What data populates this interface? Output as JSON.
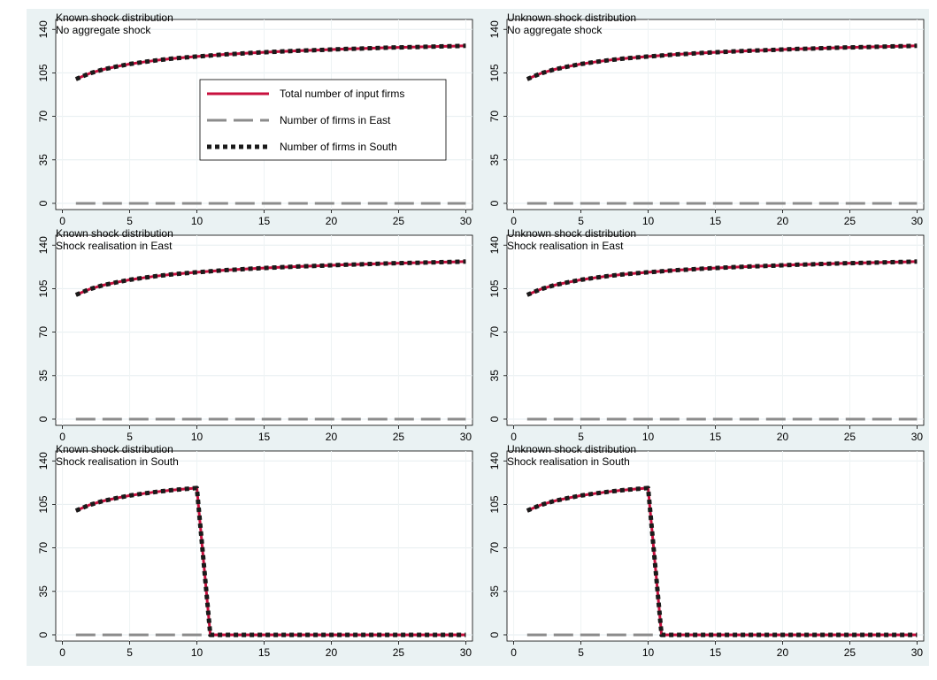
{
  "legend": [
    {
      "name": "Total number of input firms",
      "color": "#c8103e",
      "style": "solid"
    },
    {
      "name": "Number of firms in East",
      "color": "#8c8c8c",
      "style": "dashed"
    },
    {
      "name": "Number of firms in South",
      "color": "#1a1a1a",
      "style": "dotted"
    }
  ],
  "chart_data": [
    {
      "type": "line",
      "title": "Known shock distribution",
      "subtitle": "No aggregate shock",
      "x": [
        1,
        2,
        3,
        4,
        5,
        6,
        7,
        8,
        9,
        10,
        11,
        12,
        13,
        14,
        15,
        16,
        17,
        18,
        19,
        20,
        21,
        22,
        23,
        24,
        25,
        26,
        27,
        28,
        29,
        30
      ],
      "xticks": [
        0,
        5,
        10,
        15,
        20,
        25,
        30
      ],
      "yticks": [
        0,
        35,
        70,
        105,
        140
      ],
      "xlim": [
        -0.5,
        30.5
      ],
      "ylim": [
        -5,
        148
      ],
      "grid": true,
      "legend_position": "center",
      "series": [
        {
          "name": "Total number of input firms",
          "values": [
            100,
            104.5,
            107.7,
            110.1,
            112.1,
            113.7,
            115.1,
            116.3,
            117.3,
            118.2,
            119,
            119.8,
            120.4,
            121,
            121.6,
            122.1,
            122.6,
            123,
            123.4,
            123.8,
            124.2,
            124.5,
            124.9,
            125.2,
            125.5,
            125.7,
            126,
            126.3,
            126.5,
            126.8
          ]
        },
        {
          "name": "Number of firms in East",
          "values": [
            0,
            0,
            0,
            0,
            0,
            0,
            0,
            0,
            0,
            0,
            0,
            0,
            0,
            0,
            0,
            0,
            0,
            0,
            0,
            0,
            0,
            0,
            0,
            0,
            0,
            0,
            0,
            0,
            0,
            0
          ]
        },
        {
          "name": "Number of firms in South",
          "values": [
            100,
            104.5,
            107.7,
            110.1,
            112.1,
            113.7,
            115.1,
            116.3,
            117.3,
            118.2,
            119,
            119.8,
            120.4,
            121,
            121.6,
            122.1,
            122.6,
            123,
            123.4,
            123.8,
            124.2,
            124.5,
            124.9,
            125.2,
            125.5,
            125.7,
            126,
            126.3,
            126.5,
            126.8
          ]
        }
      ]
    },
    {
      "type": "line",
      "title": "Unknown shock distribution",
      "subtitle": "No aggregate shock",
      "x": [
        1,
        2,
        3,
        4,
        5,
        6,
        7,
        8,
        9,
        10,
        11,
        12,
        13,
        14,
        15,
        16,
        17,
        18,
        19,
        20,
        21,
        22,
        23,
        24,
        25,
        26,
        27,
        28,
        29,
        30
      ],
      "xticks": [
        0,
        5,
        10,
        15,
        20,
        25,
        30
      ],
      "yticks": [
        0,
        35,
        70,
        105,
        140
      ],
      "xlim": [
        -0.5,
        30.5
      ],
      "ylim": [
        -5,
        148
      ],
      "grid": true,
      "series": [
        {
          "name": "Total number of input firms",
          "values": [
            100,
            104.5,
            107.7,
            110.1,
            112.1,
            113.7,
            115.1,
            116.3,
            117.3,
            118.2,
            119,
            119.8,
            120.4,
            121,
            121.6,
            122.1,
            122.6,
            123,
            123.4,
            123.8,
            124.2,
            124.5,
            124.9,
            125.2,
            125.5,
            125.7,
            126,
            126.3,
            126.5,
            126.8
          ]
        },
        {
          "name": "Number of firms in East",
          "values": [
            0,
            0,
            0,
            0,
            0,
            0,
            0,
            0,
            0,
            0,
            0,
            0,
            0,
            0,
            0,
            0,
            0,
            0,
            0,
            0,
            0,
            0,
            0,
            0,
            0,
            0,
            0,
            0,
            0,
            0
          ]
        },
        {
          "name": "Number of firms in South",
          "values": [
            100,
            104.5,
            107.7,
            110.1,
            112.1,
            113.7,
            115.1,
            116.3,
            117.3,
            118.2,
            119,
            119.8,
            120.4,
            121,
            121.6,
            122.1,
            122.6,
            123,
            123.4,
            123.8,
            124.2,
            124.5,
            124.9,
            125.2,
            125.5,
            125.7,
            126,
            126.3,
            126.5,
            126.8
          ]
        }
      ]
    },
    {
      "type": "line",
      "title": "Known shock distribution",
      "subtitle": "Shock realisation in East",
      "x": [
        1,
        2,
        3,
        4,
        5,
        6,
        7,
        8,
        9,
        10,
        11,
        12,
        13,
        14,
        15,
        16,
        17,
        18,
        19,
        20,
        21,
        22,
        23,
        24,
        25,
        26,
        27,
        28,
        29,
        30
      ],
      "xticks": [
        0,
        5,
        10,
        15,
        20,
        25,
        30
      ],
      "yticks": [
        0,
        35,
        70,
        105,
        140
      ],
      "xlim": [
        -0.5,
        30.5
      ],
      "ylim": [
        -5,
        148
      ],
      "grid": true,
      "series": [
        {
          "name": "Total number of input firms",
          "values": [
            100,
            104.5,
            107.7,
            110.1,
            112.1,
            113.7,
            115.1,
            116.3,
            117.3,
            118.2,
            119,
            119.8,
            120.4,
            121,
            121.6,
            122.1,
            122.6,
            123,
            123.4,
            123.8,
            124.2,
            124.5,
            124.9,
            125.2,
            125.5,
            125.7,
            126,
            126.3,
            126.5,
            126.8
          ]
        },
        {
          "name": "Number of firms in East",
          "values": [
            0,
            0,
            0,
            0,
            0,
            0,
            0,
            0,
            0,
            0,
            0,
            0,
            0,
            0,
            0,
            0,
            0,
            0,
            0,
            0,
            0,
            0,
            0,
            0,
            0,
            0,
            0,
            0,
            0,
            0
          ]
        },
        {
          "name": "Number of firms in South",
          "values": [
            100,
            104.5,
            107.7,
            110.1,
            112.1,
            113.7,
            115.1,
            116.3,
            117.3,
            118.2,
            119,
            119.8,
            120.4,
            121,
            121.6,
            122.1,
            122.6,
            123,
            123.4,
            123.8,
            124.2,
            124.5,
            124.9,
            125.2,
            125.5,
            125.7,
            126,
            126.3,
            126.5,
            126.8
          ]
        }
      ]
    },
    {
      "type": "line",
      "title": "Unknown shock distribution",
      "subtitle": "Shock realisation in East",
      "x": [
        1,
        2,
        3,
        4,
        5,
        6,
        7,
        8,
        9,
        10,
        11,
        12,
        13,
        14,
        15,
        16,
        17,
        18,
        19,
        20,
        21,
        22,
        23,
        24,
        25,
        26,
        27,
        28,
        29,
        30
      ],
      "xticks": [
        0,
        5,
        10,
        15,
        20,
        25,
        30
      ],
      "yticks": [
        0,
        35,
        70,
        105,
        140
      ],
      "xlim": [
        -0.5,
        30.5
      ],
      "ylim": [
        -5,
        148
      ],
      "grid": true,
      "series": [
        {
          "name": "Total number of input firms",
          "values": [
            100,
            104.5,
            107.7,
            110.1,
            112.1,
            113.7,
            115.1,
            116.3,
            117.3,
            118.2,
            119,
            119.8,
            120.4,
            121,
            121.6,
            122.1,
            122.6,
            123,
            123.4,
            123.8,
            124.2,
            124.5,
            124.9,
            125.2,
            125.5,
            125.7,
            126,
            126.3,
            126.5,
            126.8
          ]
        },
        {
          "name": "Number of firms in East",
          "values": [
            0,
            0,
            0,
            0,
            0,
            0,
            0,
            0,
            0,
            0,
            0,
            0,
            0,
            0,
            0,
            0,
            0,
            0,
            0,
            0,
            0,
            0,
            0,
            0,
            0,
            0,
            0,
            0,
            0,
            0
          ]
        },
        {
          "name": "Number of firms in South",
          "values": [
            100,
            104.5,
            107.7,
            110.1,
            112.1,
            113.7,
            115.1,
            116.3,
            117.3,
            118.2,
            119,
            119.8,
            120.4,
            121,
            121.6,
            122.1,
            122.6,
            123,
            123.4,
            123.8,
            124.2,
            124.5,
            124.9,
            125.2,
            125.5,
            125.7,
            126,
            126.3,
            126.5,
            126.8
          ]
        }
      ]
    },
    {
      "type": "line",
      "title": "Known shock distribution",
      "subtitle": "Shock realisation in South",
      "x": [
        1,
        2,
        3,
        4,
        5,
        6,
        7,
        8,
        9,
        10,
        11,
        12,
        13,
        14,
        15,
        16,
        17,
        18,
        19,
        20,
        21,
        22,
        23,
        24,
        25,
        26,
        27,
        28,
        29,
        30
      ],
      "xticks": [
        0,
        5,
        10,
        15,
        20,
        25,
        30
      ],
      "yticks": [
        0,
        35,
        70,
        105,
        140
      ],
      "xlim": [
        -0.5,
        30.5
      ],
      "ylim": [
        -5,
        148
      ],
      "grid": true,
      "series": [
        {
          "name": "Total number of input firms",
          "values": [
            100,
            104.5,
            107.7,
            110.1,
            112.1,
            113.7,
            115.1,
            116.3,
            117.3,
            118.2,
            0,
            0,
            0,
            0,
            0,
            0,
            0,
            0,
            0,
            0,
            0,
            0,
            0,
            0,
            0,
            0,
            0,
            0,
            0,
            0
          ]
        },
        {
          "name": "Number of firms in East",
          "values": [
            0,
            0,
            0,
            0,
            0,
            0,
            0,
            0,
            0,
            0,
            0,
            0,
            0,
            0,
            0,
            0,
            0,
            0,
            0,
            0,
            0,
            0,
            0,
            0,
            0,
            0,
            0,
            0,
            0,
            0
          ]
        },
        {
          "name": "Number of firms in South",
          "values": [
            100,
            104.5,
            107.7,
            110.1,
            112.1,
            113.7,
            115.1,
            116.3,
            117.3,
            118.2,
            0,
            0,
            0,
            0,
            0,
            0,
            0,
            0,
            0,
            0,
            0,
            0,
            0,
            0,
            0,
            0,
            0,
            0,
            0,
            0
          ]
        }
      ]
    },
    {
      "type": "line",
      "title": "Unknown shock distribution",
      "subtitle": "Shock realisation in South",
      "x": [
        1,
        2,
        3,
        4,
        5,
        6,
        7,
        8,
        9,
        10,
        11,
        12,
        13,
        14,
        15,
        16,
        17,
        18,
        19,
        20,
        21,
        22,
        23,
        24,
        25,
        26,
        27,
        28,
        29,
        30
      ],
      "xticks": [
        0,
        5,
        10,
        15,
        20,
        25,
        30
      ],
      "yticks": [
        0,
        35,
        70,
        105,
        140
      ],
      "xlim": [
        -0.5,
        30.5
      ],
      "ylim": [
        -5,
        148
      ],
      "grid": true,
      "series": [
        {
          "name": "Total number of input firms",
          "values": [
            100,
            104.5,
            107.7,
            110.1,
            112.1,
            113.7,
            115.1,
            116.3,
            117.3,
            118.2,
            0,
            0,
            0,
            0,
            0,
            0,
            0,
            0,
            0,
            0,
            0,
            0,
            0,
            0,
            0,
            0,
            0,
            0,
            0,
            0
          ]
        },
        {
          "name": "Number of firms in East",
          "values": [
            0,
            0,
            0,
            0,
            0,
            0,
            0,
            0,
            0,
            0,
            0,
            0,
            0,
            0,
            0,
            0,
            0,
            0,
            0,
            0,
            0,
            0,
            0,
            0,
            0,
            0,
            0,
            0,
            0,
            0
          ]
        },
        {
          "name": "Number of firms in South",
          "values": [
            100,
            104.5,
            107.7,
            110.1,
            112.1,
            113.7,
            115.1,
            116.3,
            117.3,
            118.2,
            0,
            0,
            0,
            0,
            0,
            0,
            0,
            0,
            0,
            0,
            0,
            0,
            0,
            0,
            0,
            0,
            0,
            0,
            0,
            0
          ]
        }
      ]
    }
  ]
}
